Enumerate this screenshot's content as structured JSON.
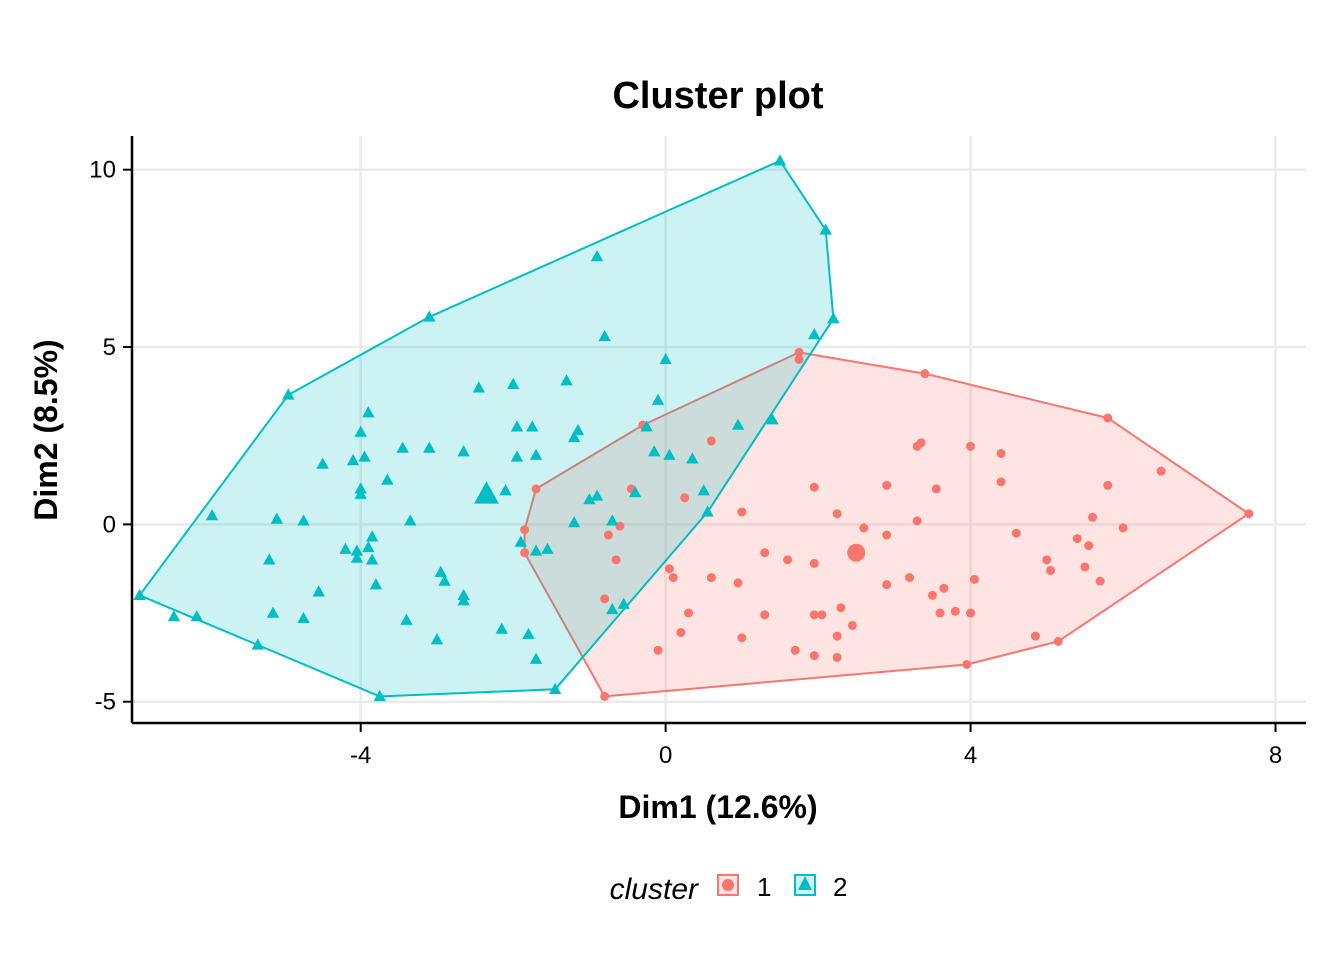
{
  "chart_data": {
    "type": "scatter",
    "title": "Cluster plot",
    "xlabel": "Dim1 (12.6%)",
    "ylabel": "Dim2 (8.5%)",
    "xlim": [
      -7.0,
      8.4
    ],
    "ylim": [
      -5.6,
      10.95
    ],
    "xticks": [
      -4,
      0,
      4,
      8
    ],
    "yticks": [
      -5,
      0,
      5,
      10
    ],
    "xtick_labels": [
      "-4",
      "0",
      "4",
      "8"
    ],
    "ytick_labels": [
      "-5",
      "0",
      "5",
      "10"
    ],
    "grid": true,
    "legend": {
      "title": "cluster",
      "position": "bottom",
      "entries": [
        "1",
        "2"
      ]
    },
    "series": [
      {
        "name": "1",
        "color": "#F8766D",
        "marker": "circle",
        "centroid": [
          2.5,
          -0.8
        ],
        "hull": [
          [
            7.65,
            0.3
          ],
          [
            5.8,
            3.0
          ],
          [
            3.4,
            4.25
          ],
          [
            1.75,
            4.85
          ],
          [
            -0.3,
            2.8
          ],
          [
            -1.7,
            1.0
          ],
          [
            -1.85,
            -0.15
          ],
          [
            -1.85,
            -0.8
          ],
          [
            -0.8,
            -4.85
          ],
          [
            3.95,
            -3.95
          ],
          [
            5.15,
            -3.3
          ]
        ],
        "points": [
          [
            7.65,
            0.3
          ],
          [
            6.5,
            1.5
          ],
          [
            6.0,
            -0.1
          ],
          [
            5.8,
            3.0
          ],
          [
            5.8,
            1.1
          ],
          [
            5.7,
            -1.6
          ],
          [
            5.6,
            0.2
          ],
          [
            5.55,
            -0.6
          ],
          [
            5.5,
            -1.2
          ],
          [
            5.4,
            -0.4
          ],
          [
            5.15,
            -3.3
          ],
          [
            5.05,
            -1.3
          ],
          [
            5.0,
            -1.0
          ],
          [
            4.85,
            -3.15
          ],
          [
            4.6,
            -0.25
          ],
          [
            4.4,
            2.0
          ],
          [
            4.4,
            1.2
          ],
          [
            4.05,
            -1.55
          ],
          [
            4.0,
            2.2
          ],
          [
            4.0,
            -2.5
          ],
          [
            3.95,
            -3.95
          ],
          [
            3.8,
            -2.45
          ],
          [
            3.65,
            -1.8
          ],
          [
            3.6,
            -2.5
          ],
          [
            3.55,
            1.0
          ],
          [
            3.5,
            -2.0
          ],
          [
            3.4,
            4.25
          ],
          [
            3.35,
            2.3
          ],
          [
            3.3,
            0.1
          ],
          [
            3.3,
            2.2
          ],
          [
            3.2,
            -1.5
          ],
          [
            2.9,
            -1.7
          ],
          [
            2.9,
            1.1
          ],
          [
            2.9,
            -0.3
          ],
          [
            2.6,
            -0.1
          ],
          [
            2.45,
            -2.85
          ],
          [
            2.3,
            -2.35
          ],
          [
            2.25,
            0.3
          ],
          [
            2.25,
            -3.15
          ],
          [
            2.25,
            -3.75
          ],
          [
            2.05,
            -2.55
          ],
          [
            1.95,
            -2.55
          ],
          [
            1.95,
            -1.1
          ],
          [
            1.95,
            1.05
          ],
          [
            1.95,
            -3.7
          ],
          [
            1.7,
            -3.55
          ],
          [
            1.6,
            -1.0
          ],
          [
            1.3,
            -0.8
          ],
          [
            1.3,
            -2.55
          ],
          [
            1.0,
            0.35
          ],
          [
            1.0,
            -3.2
          ],
          [
            0.95,
            -1.65
          ],
          [
            0.6,
            2.35
          ],
          [
            0.6,
            -1.5
          ],
          [
            0.3,
            -2.5
          ],
          [
            0.25,
            0.75
          ],
          [
            0.2,
            -3.05
          ],
          [
            0.1,
            -1.5
          ],
          [
            0.05,
            -1.25
          ],
          [
            -0.1,
            -3.55
          ],
          [
            -0.3,
            2.8
          ],
          [
            -0.45,
            1.0
          ],
          [
            -0.6,
            -0.05
          ],
          [
            -0.65,
            -1.0
          ],
          [
            -0.75,
            -0.3
          ],
          [
            -0.8,
            -2.1
          ],
          [
            -0.8,
            -4.85
          ],
          [
            -1.7,
            1.0
          ],
          [
            -1.85,
            -0.15
          ],
          [
            -1.85,
            -0.8
          ],
          [
            1.75,
            4.85
          ],
          [
            1.75,
            4.65
          ]
        ]
      },
      {
        "name": "2",
        "color": "#00BFC4",
        "marker": "triangle",
        "centroid": [
          -2.35,
          0.85
        ],
        "hull": [
          [
            1.5,
            10.25
          ],
          [
            2.1,
            8.3
          ],
          [
            2.2,
            5.8
          ],
          [
            0.55,
            0.35
          ],
          [
            -1.45,
            -4.65
          ],
          [
            -3.75,
            -4.85
          ],
          [
            -5.35,
            -3.4
          ],
          [
            -6.9,
            -2.0
          ],
          [
            -4.95,
            3.65
          ],
          [
            -3.1,
            5.85
          ]
        ],
        "points": [
          [
            1.5,
            10.25
          ],
          [
            2.1,
            8.3
          ],
          [
            2.2,
            5.8
          ],
          [
            1.95,
            5.35
          ],
          [
            -0.9,
            7.55
          ],
          [
            -0.8,
            5.3
          ],
          [
            -1.3,
            4.05
          ],
          [
            -2.0,
            3.95
          ],
          [
            -2.45,
            3.85
          ],
          [
            -3.1,
            5.85
          ],
          [
            -4.95,
            3.65
          ],
          [
            -3.9,
            3.15
          ],
          [
            -4.0,
            2.6
          ],
          [
            -3.95,
            1.9
          ],
          [
            -4.1,
            1.8
          ],
          [
            -4.5,
            1.7
          ],
          [
            -3.45,
            2.15
          ],
          [
            -3.1,
            2.15
          ],
          [
            -2.65,
            2.05
          ],
          [
            -1.75,
            2.75
          ],
          [
            -1.95,
            2.75
          ],
          [
            -1.15,
            2.65
          ],
          [
            -1.2,
            2.45
          ],
          [
            -1.7,
            1.95
          ],
          [
            -1.95,
            1.9
          ],
          [
            -3.65,
            1.25
          ],
          [
            -4.0,
            1.0
          ],
          [
            -4.0,
            0.85
          ],
          [
            -3.35,
            0.1
          ],
          [
            -4.75,
            0.1
          ],
          [
            -5.1,
            0.15
          ],
          [
            -5.95,
            0.25
          ],
          [
            -3.85,
            -0.35
          ],
          [
            -3.9,
            -0.65
          ],
          [
            -4.05,
            -0.75
          ],
          [
            -4.05,
            -0.95
          ],
          [
            -4.2,
            -0.7
          ],
          [
            -3.85,
            -1.0
          ],
          [
            -5.2,
            -1.0
          ],
          [
            -4.55,
            -1.9
          ],
          [
            -3.8,
            -1.7
          ],
          [
            -2.95,
            -1.35
          ],
          [
            -2.9,
            -1.6
          ],
          [
            -2.65,
            -2.0
          ],
          [
            -2.65,
            -2.15
          ],
          [
            -5.15,
            -2.5
          ],
          [
            -4.75,
            -2.65
          ],
          [
            -3.4,
            -2.7
          ],
          [
            -3.0,
            -3.25
          ],
          [
            -2.15,
            -2.95
          ],
          [
            -1.8,
            -3.1
          ],
          [
            -1.7,
            -3.8
          ],
          [
            -1.45,
            -4.65
          ],
          [
            -3.75,
            -4.85
          ],
          [
            -5.35,
            -3.4
          ],
          [
            -6.9,
            -2.0
          ],
          [
            -6.45,
            -2.6
          ],
          [
            -6.15,
            -2.6
          ],
          [
            -0.55,
            -2.25
          ],
          [
            -0.7,
            -2.4
          ],
          [
            -1.2,
            0.05
          ],
          [
            -1.0,
            0.7
          ],
          [
            -0.9,
            0.8
          ],
          [
            -0.7,
            0.1
          ],
          [
            -0.4,
            0.9
          ],
          [
            -1.55,
            -0.7
          ],
          [
            -1.7,
            -0.75
          ],
          [
            -1.9,
            -0.5
          ],
          [
            -2.1,
            0.95
          ],
          [
            -0.15,
            2.05
          ],
          [
            0.05,
            1.95
          ],
          [
            0.35,
            1.85
          ],
          [
            0.55,
            0.35
          ],
          [
            0.5,
            0.95
          ],
          [
            0.95,
            2.8
          ],
          [
            1.4,
            2.95
          ],
          [
            -0.1,
            3.5
          ],
          [
            0.0,
            4.65
          ],
          [
            -0.25,
            2.75
          ]
        ]
      }
    ]
  }
}
